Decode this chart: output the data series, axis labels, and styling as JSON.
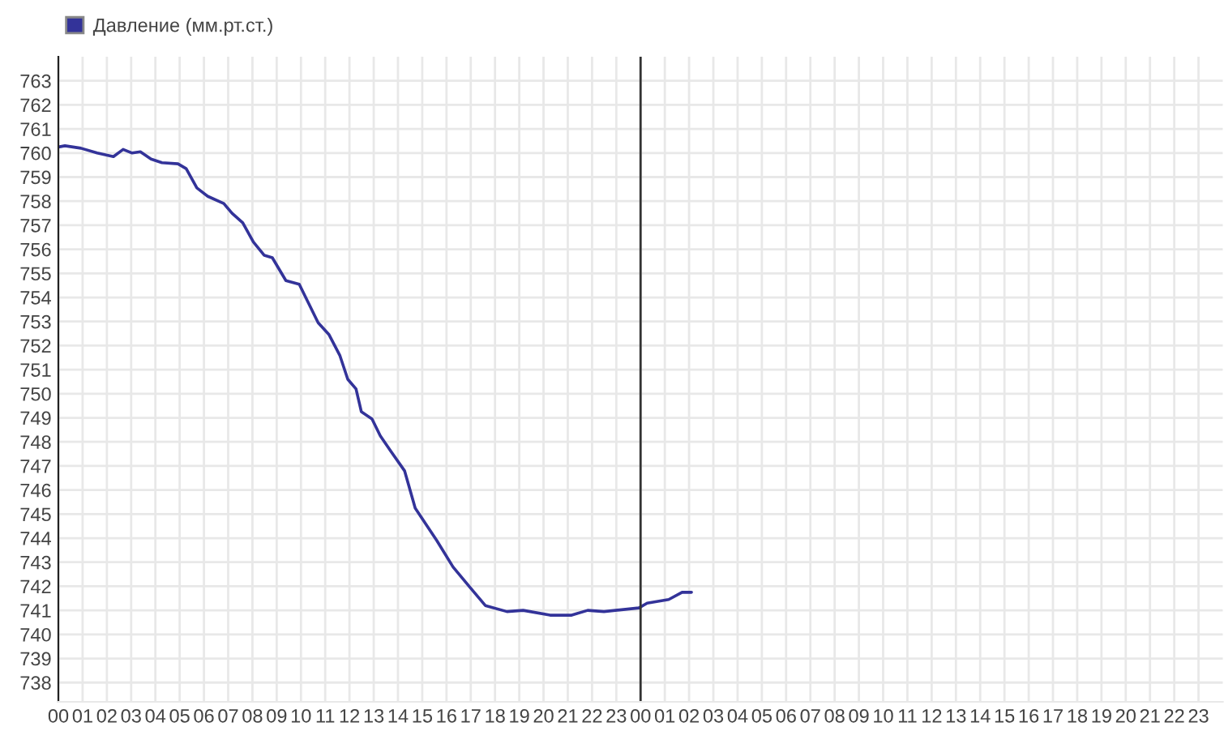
{
  "chart_data": {
    "type": "line",
    "x": [
      0,
      0.27,
      0.93,
      1.6,
      2.27,
      2.67,
      3.04,
      3.38,
      3.82,
      4.27,
      4.93,
      5.27,
      5.71,
      6.16,
      6.82,
      7.16,
      7.6,
      8.04,
      8.49,
      8.82,
      9.38,
      9.93,
      10.27,
      10.71,
      11.16,
      11.6,
      11.93,
      12.27,
      12.49,
      12.93,
      13.27,
      13.71,
      14.27,
      14.71,
      15.6,
      16.27,
      16.93,
      17.6,
      18.49,
      19.16,
      20.27,
      21.16,
      21.82,
      22.49,
      23.93,
      24.27,
      25.16,
      25.71,
      26.1
    ],
    "series": [
      {
        "name": "Давление (мм.рт.ст.)",
        "color": "#333399",
        "values": [
          760.25,
          760.3,
          760.2,
          760.0,
          759.85,
          760.15,
          760.0,
          760.05,
          759.75,
          759.6,
          759.55,
          759.35,
          758.55,
          758.2,
          757.9,
          757.5,
          757.1,
          756.3,
          755.75,
          755.65,
          754.7,
          754.55,
          753.85,
          752.95,
          752.45,
          751.6,
          750.6,
          750.2,
          749.25,
          748.95,
          748.25,
          747.6,
          746.8,
          745.25,
          743.9,
          742.8,
          742.0,
          741.2,
          740.95,
          741.0,
          740.8,
          740.8,
          741.0,
          740.95,
          741.1,
          741.3,
          741.45,
          741.75,
          741.75
        ]
      }
    ],
    "xlim": [
      0,
      48
    ],
    "xticks": [
      {
        "value": 0,
        "label": "00"
      },
      {
        "value": 1,
        "label": "01"
      },
      {
        "value": 2,
        "label": "02"
      },
      {
        "value": 3,
        "label": "03"
      },
      {
        "value": 4,
        "label": "04"
      },
      {
        "value": 5,
        "label": "05"
      },
      {
        "value": 6,
        "label": "06"
      },
      {
        "value": 7,
        "label": "07"
      },
      {
        "value": 8,
        "label": "08"
      },
      {
        "value": 9,
        "label": "09"
      },
      {
        "value": 10,
        "label": "10"
      },
      {
        "value": 11,
        "label": "11"
      },
      {
        "value": 12,
        "label": "12"
      },
      {
        "value": 13,
        "label": "13"
      },
      {
        "value": 14,
        "label": "14"
      },
      {
        "value": 15,
        "label": "15"
      },
      {
        "value": 16,
        "label": "16"
      },
      {
        "value": 17,
        "label": "17"
      },
      {
        "value": 18,
        "label": "18"
      },
      {
        "value": 19,
        "label": "19"
      },
      {
        "value": 20,
        "label": "20"
      },
      {
        "value": 21,
        "label": "21"
      },
      {
        "value": 22,
        "label": "22"
      },
      {
        "value": 23,
        "label": "23"
      },
      {
        "value": 24,
        "label": "00"
      },
      {
        "value": 25,
        "label": "01"
      },
      {
        "value": 26,
        "label": "02"
      },
      {
        "value": 27,
        "label": "03"
      },
      {
        "value": 28,
        "label": "04"
      },
      {
        "value": 29,
        "label": "05"
      },
      {
        "value": 30,
        "label": "06"
      },
      {
        "value": 31,
        "label": "07"
      },
      {
        "value": 32,
        "label": "08"
      },
      {
        "value": 33,
        "label": "09"
      },
      {
        "value": 34,
        "label": "10"
      },
      {
        "value": 35,
        "label": "11"
      },
      {
        "value": 36,
        "label": "12"
      },
      {
        "value": 37,
        "label": "13"
      },
      {
        "value": 38,
        "label": "14"
      },
      {
        "value": 39,
        "label": "15"
      },
      {
        "value": 40,
        "label": "16"
      },
      {
        "value": 41,
        "label": "17"
      },
      {
        "value": 42,
        "label": "18"
      },
      {
        "value": 43,
        "label": "19"
      },
      {
        "value": 44,
        "label": "20"
      },
      {
        "value": 45,
        "label": "21"
      },
      {
        "value": 46,
        "label": "22"
      },
      {
        "value": 47,
        "label": "23"
      }
    ],
    "ylim": [
      737.2,
      764
    ],
    "yticks": [
      738,
      739,
      740,
      741,
      742,
      743,
      744,
      745,
      746,
      747,
      748,
      749,
      750,
      751,
      752,
      753,
      754,
      755,
      756,
      757,
      758,
      759,
      760,
      761,
      762,
      763
    ],
    "ref_lines": [
      {
        "axis": "x",
        "value": 24,
        "color": "#333333"
      }
    ],
    "grid": true,
    "legend": "top left",
    "line_style": "solid",
    "marker": "none"
  }
}
